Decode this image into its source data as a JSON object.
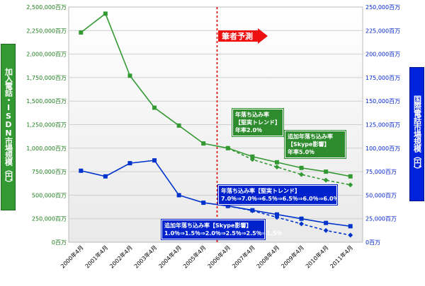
{
  "chart_data": {
    "type": "line",
    "categories": [
      "2000年4月",
      "2001年4月",
      "2002年4月",
      "2003年4月",
      "2004年4月",
      "2005年4月",
      "2006年4月",
      "2007年4月",
      "2008年4月",
      "2009年4月",
      "2010年4月",
      "2011年4月"
    ],
    "left_axis": {
      "title": "加入電話・ISDN市場規模（円）",
      "ticks": [
        "0百万",
        "250,000百万",
        "500,000百万",
        "750,000百万",
        "1,000,000百万",
        "1,250,000百万",
        "1,500,000百万",
        "1,750,000百万",
        "2,000,000百万",
        "2,250,000百万",
        "2,500,000百万"
      ],
      "range": [
        0,
        2500000
      ]
    },
    "right_axis": {
      "title": "国際電話市場規模（円）",
      "ticks": [
        "0百万",
        "25,000百万",
        "50,000百万",
        "75,000百万",
        "100,000百万",
        "125,000百万",
        "150,000百万",
        "175,000百万",
        "200,000百万",
        "225,000百万",
        "250,000百万"
      ],
      "range": [
        0,
        250000
      ]
    },
    "series": [
      {
        "axis": "left",
        "color": "#339933",
        "style": "solid",
        "values": [
          2230000,
          2430000,
          1770000,
          1430000,
          1240000,
          1050000,
          1000000,
          910000,
          850000,
          790000,
          750000,
          700000
        ]
      },
      {
        "axis": "left",
        "color": "#339933",
        "style": "dashed",
        "start": 6,
        "values": [
          null,
          null,
          null,
          null,
          null,
          null,
          1000000,
          880000,
          800000,
          720000,
          660000,
          610000
        ]
      },
      {
        "axis": "right",
        "color": "#0033cc",
        "style": "solid",
        "values": [
          76000,
          70000,
          84000,
          87000,
          50000,
          42000,
          38500,
          34000,
          29500,
          25000,
          20500,
          17000
        ]
      },
      {
        "axis": "right",
        "color": "#0033cc",
        "style": "dashed",
        "start": 6,
        "values": [
          null,
          null,
          null,
          null,
          null,
          null,
          38500,
          33500,
          26500,
          19500,
          12500,
          7500
        ]
      }
    ],
    "forecast_start": "2006年4月",
    "forecast_label": "筆者予測",
    "annotations": [
      {
        "id": "green1",
        "lines": [
          "年落ち込み率",
          "【堅実トレンド】",
          "年率2.0％"
        ]
      },
      {
        "id": "green2",
        "lines": [
          "追加年落ち込み率",
          "【Skype影響】",
          "年率5.0％"
        ]
      },
      {
        "id": "blue1",
        "lines": [
          "年落ち込み率【堅実トレンド】",
          "7.0％⇒7.0％⇒6.5％⇒6.5％⇒6.0％⇒6.0％"
        ]
      },
      {
        "id": "blue2",
        "lines": [
          "追加年落ち込み率【Skype影響】",
          "1.0％⇒1.5％⇒2.0％⇒2.5％⇒2.5％⇒1.5％"
        ]
      }
    ]
  }
}
